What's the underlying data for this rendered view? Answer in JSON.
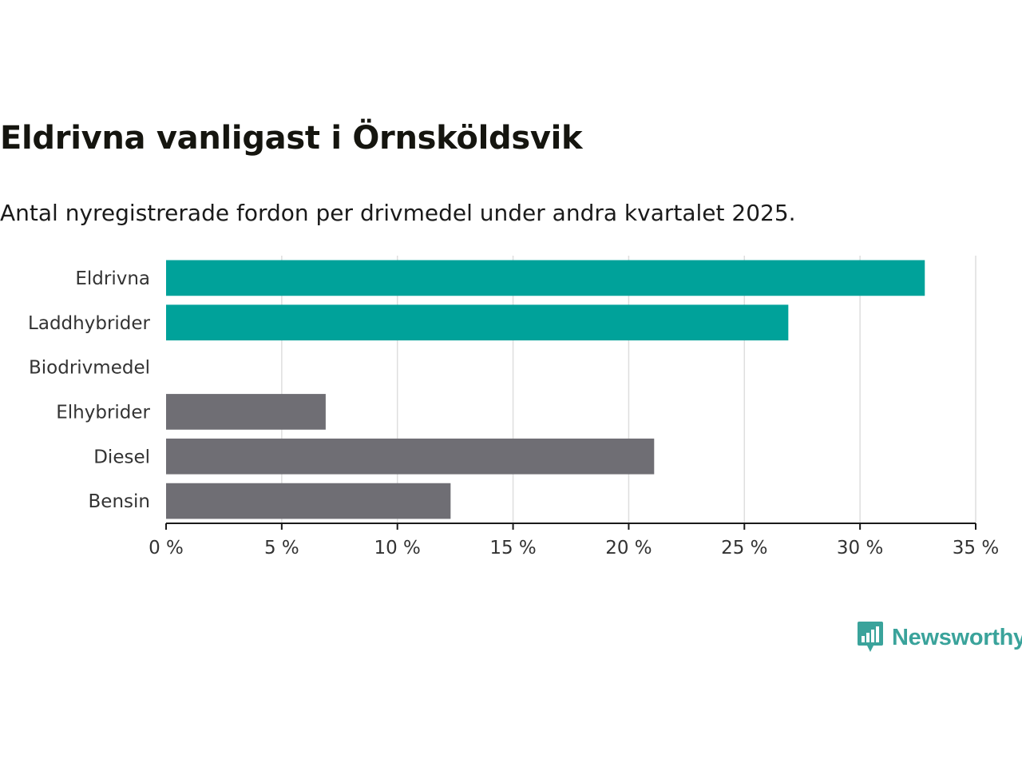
{
  "title": "Eldrivna vanligast i Örnsköldsvik",
  "subtitle": "Antal nyregistrerade fordon per drivmedel under andra kvartalet 2025.",
  "brand": {
    "name": "Newsworthy",
    "icon": "bar-chart-speech-bubble-icon",
    "color": "#3aa39b"
  },
  "chart_data": {
    "type": "bar",
    "orientation": "horizontal",
    "categories": [
      "Eldrivna",
      "Laddhybrider",
      "Biodrivmedel",
      "Elhybrider",
      "Diesel",
      "Bensin"
    ],
    "values": [
      32.8,
      26.9,
      0,
      6.9,
      21.1,
      12.3
    ],
    "colors": [
      "#00a29a",
      "#00a29a",
      "#00a29a",
      "#6f6e74",
      "#6f6e74",
      "#6f6e74"
    ],
    "xlim": [
      0,
      35
    ],
    "xticks": [
      0,
      5,
      10,
      15,
      20,
      25,
      30,
      35
    ],
    "tick_labels": [
      "0 %",
      "5 %",
      "10 %",
      "15 %",
      "20 %",
      "25 %",
      "30 %",
      "35 %"
    ],
    "grid": true,
    "title": "Eldrivna vanligast i Örnsköldsvik",
    "xlabel": "",
    "ylabel": ""
  }
}
